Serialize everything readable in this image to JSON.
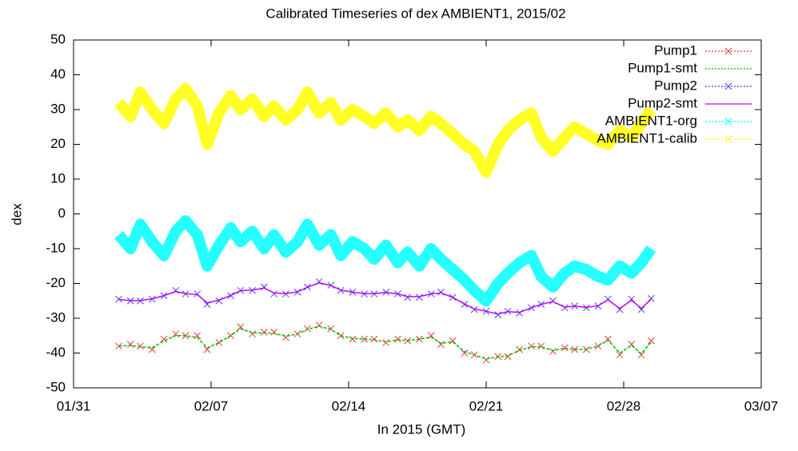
{
  "chart_data": {
    "type": "line",
    "title": "Calibrated Timeseries of dex AMBIENT1, 2015/02",
    "x_label": "In 2015 (GMT)",
    "y_label": "dex",
    "x": [
      2.3,
      2.9,
      3.4,
      4.0,
      4.6,
      5.2,
      5.7,
      6.3,
      6.8,
      7.4,
      8.0,
      8.5,
      9.1,
      9.7,
      10.2,
      10.8,
      11.4,
      11.9,
      12.5,
      13.1,
      13.6,
      14.2,
      14.8,
      15.3,
      15.9,
      16.5,
      17.0,
      17.6,
      18.2,
      18.7,
      19.3,
      19.9,
      20.4,
      21.0,
      21.6,
      22.1,
      22.7,
      23.3,
      23.8,
      24.4,
      25.0,
      25.5,
      26.1,
      26.7,
      27.2,
      27.8,
      28.4,
      28.9,
      29.4
    ],
    "xlim": [
      0,
      35
    ],
    "xticks": [
      {
        "value": 0,
        "label": "01/31"
      },
      {
        "value": 7,
        "label": "02/07"
      },
      {
        "value": 14,
        "label": "02/14"
      },
      {
        "value": 21,
        "label": "02/21"
      },
      {
        "value": 28,
        "label": "02/28"
      },
      {
        "value": 35,
        "label": "03/07"
      }
    ],
    "ylim": [
      -50,
      50
    ],
    "yticks": [
      -50,
      -40,
      -30,
      -20,
      -10,
      0,
      10,
      20,
      30,
      40,
      50
    ],
    "legend": "top-right",
    "series": [
      {
        "name": "AMBIENT1-calib",
        "color": "#ffff00",
        "style": "band",
        "values": [
          32,
          28,
          35,
          30,
          26,
          33,
          36,
          31,
          20,
          29,
          34,
          30,
          33,
          28,
          31,
          27,
          30,
          35,
          29,
          32,
          27,
          30,
          28,
          26,
          29,
          25,
          27,
          24,
          28,
          26,
          23,
          20,
          18,
          12,
          20,
          24,
          27,
          29,
          22,
          18,
          22,
          25,
          23,
          21,
          20,
          24,
          22,
          26,
          30
        ]
      },
      {
        "name": "AMBIENT1-org",
        "color": "#00ffff",
        "style": "band",
        "values": [
          -6,
          -10,
          -3,
          -8,
          -12,
          -5,
          -2,
          -6,
          -15,
          -9,
          -4,
          -8,
          -5,
          -10,
          -6,
          -11,
          -8,
          -3,
          -9,
          -6,
          -12,
          -8,
          -10,
          -13,
          -9,
          -14,
          -11,
          -15,
          -10,
          -13,
          -16,
          -19,
          -22,
          -25,
          -20,
          -17,
          -14,
          -12,
          -18,
          -21,
          -17,
          -15,
          -16,
          -18,
          -19,
          -15,
          -17,
          -14,
          -10
        ]
      },
      {
        "name": "Pump1",
        "color": "#ff3030",
        "style": "points",
        "values": [
          -38,
          -37.5,
          -38,
          -39,
          -36,
          -34.5,
          -35,
          -35,
          -39,
          -37,
          -35,
          -32.5,
          -34.5,
          -34,
          -34,
          -35.5,
          -34.5,
          -33,
          -32,
          -33,
          -35,
          -36,
          -36,
          -36,
          -37,
          -36,
          -36.5,
          -36,
          -35,
          -37.5,
          -36.5,
          -40,
          -40.5,
          -42,
          -41,
          -41,
          -39,
          -38,
          -38,
          -39.5,
          -38.5,
          -39,
          -39,
          -38,
          -36,
          -40.5,
          -37.5,
          -40.5,
          -36.5
        ]
      },
      {
        "name": "Pump1-smt",
        "color": "#00c000",
        "style": "dashed",
        "values": [
          -38,
          -37.8,
          -38.2,
          -38.5,
          -36.5,
          -35,
          -35,
          -35.5,
          -38.5,
          -37,
          -35,
          -33,
          -34.2,
          -34.2,
          -34.3,
          -35.2,
          -34.5,
          -33.2,
          -32.3,
          -33.2,
          -35,
          -35.8,
          -36,
          -36.2,
          -36.8,
          -36.2,
          -36.4,
          -36,
          -35.4,
          -37.2,
          -36.8,
          -39.6,
          -40.5,
          -41.7,
          -41.1,
          -40.8,
          -39.2,
          -38.2,
          -38.2,
          -39.3,
          -38.6,
          -39,
          -38.9,
          -38,
          -36.3,
          -40,
          -37.8,
          -40.2,
          -36.8
        ]
      },
      {
        "name": "Pump2",
        "color": "#4040ff",
        "style": "points",
        "values": [
          -24.5,
          -25,
          -25,
          -24.5,
          -23.5,
          -22,
          -23,
          -23,
          -26,
          -25,
          -23.5,
          -22,
          -22,
          -21,
          -23,
          -23,
          -22.5,
          -21,
          -19.5,
          -20.5,
          -22,
          -22.5,
          -23,
          -23,
          -22.5,
          -23,
          -24,
          -24,
          -23,
          -22.5,
          -24,
          -26,
          -27.5,
          -28,
          -29,
          -28,
          -28.5,
          -27,
          -26,
          -25,
          -27,
          -26.5,
          -27,
          -26.5,
          -24.5,
          -27.5,
          -24.5,
          -27.5,
          -24.3
        ]
      },
      {
        "name": "Pump2-smt",
        "color": "#c000ff",
        "style": "solid",
        "values": [
          -24.6,
          -24.9,
          -24.9,
          -24.4,
          -23.5,
          -22.3,
          -22.9,
          -23.2,
          -25.6,
          -24.8,
          -23.4,
          -22.1,
          -21.9,
          -21.3,
          -22.7,
          -22.9,
          -22.4,
          -21.1,
          -19.8,
          -20.6,
          -21.9,
          -22.5,
          -22.9,
          -22.9,
          -22.6,
          -23,
          -23.8,
          -23.8,
          -23,
          -22.7,
          -24,
          -25.9,
          -27.3,
          -28,
          -28.8,
          -28.1,
          -28.3,
          -27,
          -26,
          -25.2,
          -26.8,
          -26.5,
          -26.9,
          -26.4,
          -24.7,
          -27.2,
          -24.8,
          -27.2,
          -24.5
        ]
      }
    ]
  }
}
